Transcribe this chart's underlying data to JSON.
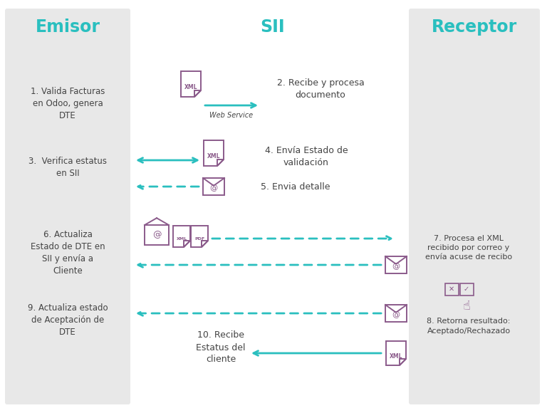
{
  "bg_color": "#f5f5f5",
  "panel_color": "#e8e8e8",
  "white_bg": "#ffffff",
  "teal_color": "#2abfbf",
  "purple_color": "#8b5b8b",
  "dark_text": "#444444",
  "title_emisor": "Emisor",
  "title_sii": "SII",
  "title_receptor": "Receptor",
  "emisor_texts": [
    "1. Valida Facturas\nen Odoo, genera\nDTE",
    "3.  Verifica estatus\nen SII",
    "6. Actualiza\nEstado de DTE en\nSII y envía a\nCliente",
    "9. Actualiza estado\nde Aceptación de\nDTE"
  ],
  "sii_texts": [
    "2. Recibe y procesa\ndocumento",
    "4. Envía Estado de\nvalidación",
    "5. Envia detalle",
    "10. Recibe\nEstatus del\ncliente"
  ],
  "receptor_texts": [
    "7. Procesa el XML\nrecibido por correo y\nenvía acuse de recibo",
    "8. Retorna resultado:\nAceptado/Rechazado"
  ],
  "web_service_label": "Web Service"
}
